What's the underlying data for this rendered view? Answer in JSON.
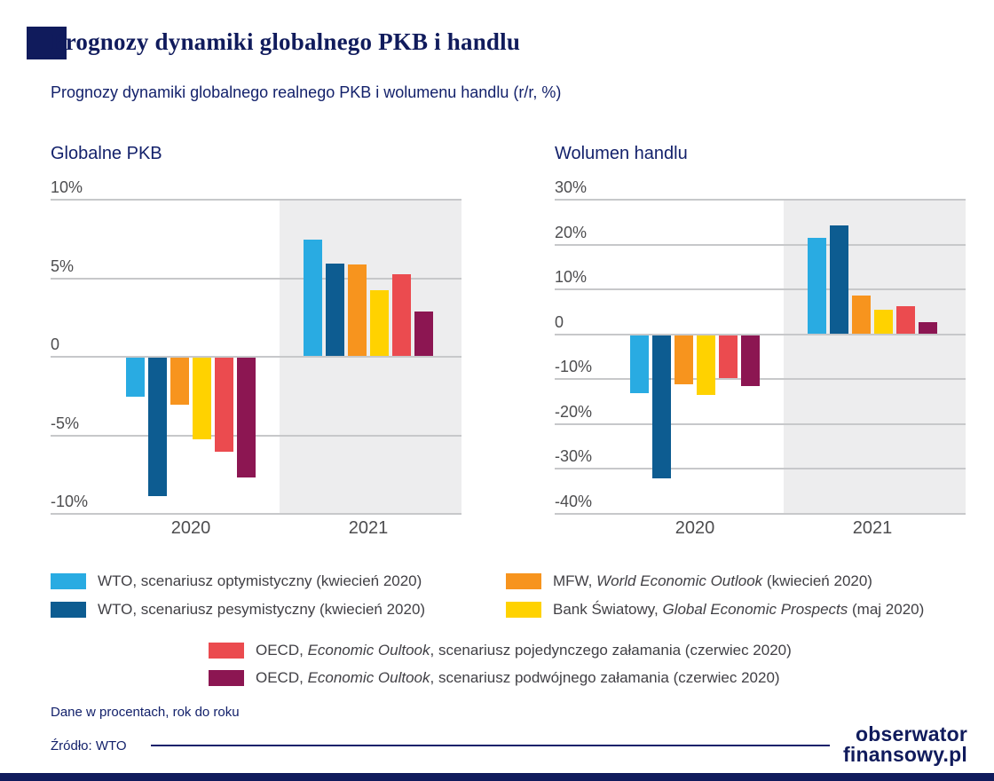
{
  "header": {
    "title": "Prognozy dynamiki globalnego PKB i handlu",
    "subtitle": "Prognozy dynamiki globalnego realnego PKB i wolumenu handlu (r/r, %)"
  },
  "colors": {
    "navy": "#101B5C",
    "wto_optimistic": "#29ABE2",
    "wto_pessimistic": "#0D5C91",
    "mfw": "#F7941E",
    "world_bank": "#FFD200",
    "oecd_single": "#EB4B4F",
    "oecd_double": "#8C1652",
    "highlight_panel": "#EDEDEE",
    "gridline": "#C7C8CA"
  },
  "chart_data": [
    {
      "type": "bar",
      "title": "Globalne PKB",
      "categories": [
        "2020",
        "2021"
      ],
      "series": [
        {
          "name": "WTO, scenariusz optymistyczny (kwiecień 2020)",
          "color_key": "wto_optimistic",
          "values": [
            -2.5,
            7.4
          ]
        },
        {
          "name": "WTO, scenariusz pesymistyczny (kwiecień 2020)",
          "color_key": "wto_pessimistic",
          "values": [
            -8.8,
            5.9
          ]
        },
        {
          "name": "MFW, World Economic Outlook (kwiecień 2020)",
          "color_key": "mfw",
          "values": [
            -3.0,
            5.8
          ]
        },
        {
          "name": "Bank Światowy, Global Economic Prospects (maj 2020)",
          "color_key": "world_bank",
          "values": [
            -5.2,
            4.2
          ]
        },
        {
          "name": "OECD, Economic Oultook, scenariusz pojedynczego załamania (czerwiec 2020)",
          "color_key": "oecd_single",
          "values": [
            -6.0,
            5.2
          ]
        },
        {
          "name": "OECD, Economic Oultook, scenariusz podwójnego załamania (czerwiec 2020)",
          "color_key": "oecd_double",
          "values": [
            -7.6,
            2.8
          ]
        }
      ],
      "ylim": [
        -10,
        10
      ],
      "yticks": [
        10,
        5,
        0,
        -5,
        -10
      ],
      "ytick_labels": [
        "10%",
        "5%",
        "0",
        "-5%",
        "-10%"
      ],
      "highlighted_category": "2021",
      "grid": true,
      "legend_position": "bottom"
    },
    {
      "type": "bar",
      "title": "Wolumen handlu",
      "categories": [
        "2020",
        "2021"
      ],
      "series": [
        {
          "name": "WTO, scenariusz optymistyczny (kwiecień 2020)",
          "color_key": "wto_optimistic",
          "values": [
            -12.9,
            21.3
          ]
        },
        {
          "name": "WTO, scenariusz pesymistyczny (kwiecień 2020)",
          "color_key": "wto_pessimistic",
          "values": [
            -31.9,
            24.0
          ]
        },
        {
          "name": "MFW, World Economic Outlook (kwiecień 2020)",
          "color_key": "mfw",
          "values": [
            -11.0,
            8.4
          ]
        },
        {
          "name": "Bank Światowy, Global Economic Prospects (maj 2020)",
          "color_key": "world_bank",
          "values": [
            -13.4,
            5.3
          ]
        },
        {
          "name": "OECD, Economic Oultook, scenariusz pojedynczego załamania (czerwiec 2020)",
          "color_key": "oecd_single",
          "values": [
            -9.5,
            6.0
          ]
        },
        {
          "name": "OECD, Economic Oultook, scenariusz podwójnego załamania (czerwiec 2020)",
          "color_key": "oecd_double",
          "values": [
            -11.4,
            2.5
          ]
        }
      ],
      "ylim": [
        -40,
        30
      ],
      "yticks": [
        30,
        20,
        10,
        0,
        -10,
        -20,
        -30,
        -40
      ],
      "ytick_labels": [
        "30%",
        "20%",
        "10%",
        "0",
        "-10%",
        "-20%",
        "-30%",
        "-40%"
      ],
      "highlighted_category": "2021",
      "grid": true,
      "legend_position": "bottom"
    }
  ],
  "legend": [
    {
      "color_key": "wto_optimistic",
      "pre": "WTO, scenariusz optymistyczny (kwiecień 2020)",
      "italic": "",
      "post": ""
    },
    {
      "color_key": "wto_pessimistic",
      "pre": "WTO, scenariusz pesymistyczny (kwiecień 2020)",
      "italic": "",
      "post": ""
    },
    {
      "color_key": "mfw",
      "pre": "MFW, ",
      "italic": "World Economic Outlook",
      "post": " (kwiecień 2020)"
    },
    {
      "color_key": "world_bank",
      "pre": "Bank Światowy, ",
      "italic": "Global Economic Prospects",
      "post": " (maj 2020)"
    },
    {
      "color_key": "oecd_single",
      "pre": "OECD, ",
      "italic": "Economic Oultook",
      "post": ", scenariusz pojedynczego załamania (czerwiec 2020)"
    },
    {
      "color_key": "oecd_double",
      "pre": "OECD, ",
      "italic": "Economic Oultook",
      "post": ", scenariusz podwójnego załamania (czerwiec 2020)"
    }
  ],
  "footer": {
    "note": "Dane w procentach, rok do roku",
    "source": "Źródło: WTO",
    "logo_line1": "obserwator",
    "logo_line2": "finansowy.pl"
  }
}
